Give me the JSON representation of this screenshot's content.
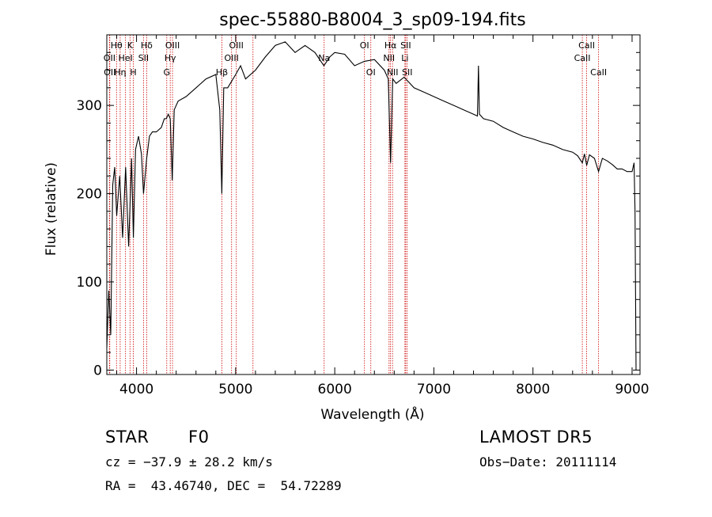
{
  "chart_data": {
    "type": "line",
    "title": "spec-55880-B8004_3_sp09-194.fits",
    "xlabel": "Wavelength (Å)",
    "ylabel": "Flux (relative)",
    "xlim": [
      3700,
      9080
    ],
    "ylim": [
      -5,
      380
    ],
    "xticks": [
      4000,
      5000,
      6000,
      7000,
      8000,
      9000
    ],
    "yticks": [
      0,
      100,
      200,
      300
    ],
    "line_color": "#000000",
    "marker_color": "#cc0000",
    "spectrum": {
      "name": "flux",
      "x": [
        3700,
        3720,
        3740,
        3760,
        3780,
        3800,
        3830,
        3860,
        3890,
        3920,
        3934,
        3950,
        3968,
        3990,
        4020,
        4050,
        4070,
        4102,
        4130,
        4160,
        4200,
        4250,
        4280,
        4300,
        4320,
        4340,
        4360,
        4380,
        4420,
        4500,
        4600,
        4700,
        4800,
        4840,
        4861,
        4880,
        4920,
        5000,
        5050,
        5100,
        5200,
        5300,
        5400,
        5500,
        5600,
        5700,
        5800,
        5890,
        5950,
        6000,
        6100,
        6200,
        6300,
        6400,
        6500,
        6540,
        6563,
        6585,
        6620,
        6700,
        6800,
        6900,
        7000,
        7100,
        7200,
        7300,
        7400,
        7440,
        7450,
        7460,
        7500,
        7600,
        7700,
        7800,
        7900,
        8000,
        8100,
        8200,
        8300,
        8400,
        8450,
        8498,
        8520,
        8542,
        8570,
        8620,
        8662,
        8700,
        8750,
        8800,
        8850,
        8900,
        8950,
        9000,
        9020,
        9030,
        9040
      ],
      "y": [
        25,
        90,
        40,
        210,
        230,
        175,
        220,
        150,
        230,
        140,
        185,
        240,
        150,
        250,
        265,
        245,
        200,
        240,
        265,
        270,
        270,
        275,
        285,
        285,
        290,
        285,
        215,
        295,
        305,
        310,
        320,
        330,
        335,
        295,
        200,
        320,
        320,
        335,
        345,
        330,
        340,
        355,
        368,
        372,
        360,
        368,
        360,
        345,
        355,
        360,
        358,
        345,
        350,
        352,
        340,
        330,
        235,
        330,
        325,
        332,
        320,
        315,
        310,
        305,
        300,
        295,
        290,
        288,
        345,
        290,
        285,
        282,
        275,
        270,
        265,
        262,
        258,
        255,
        250,
        247,
        243,
        235,
        245,
        232,
        244,
        240,
        225,
        240,
        237,
        233,
        228,
        228,
        225,
        225,
        235,
        180,
        0
      ]
    },
    "lines": [
      {
        "label": "Hθ",
        "x": 3798,
        "row": 1
      },
      {
        "label": "OII",
        "x": 3727,
        "row": 2
      },
      {
        "label": "OII",
        "x": 3730,
        "row": 3
      },
      {
        "label": "K",
        "x": 3934,
        "row": 1
      },
      {
        "label": "HeI",
        "x": 3889,
        "row": 2
      },
      {
        "label": "Hη",
        "x": 3835,
        "row": 3
      },
      {
        "label": "Hδ",
        "x": 4102,
        "row": 1
      },
      {
        "label": "SII",
        "x": 4070,
        "row": 2
      },
      {
        "label": "H",
        "x": 3968,
        "row": 3
      },
      {
        "label": "OIII",
        "x": 4363,
        "row": 1
      },
      {
        "label": "Hγ",
        "x": 4340,
        "row": 2
      },
      {
        "label": "G",
        "x": 4305,
        "row": 3
      },
      {
        "label": "OIII",
        "x": 5007,
        "row": 1
      },
      {
        "label": "OIII",
        "x": 4959,
        "row": 2
      },
      {
        "label": "Hβ",
        "x": 4861,
        "row": 3
      },
      {
        "label": "Na",
        "x": 5893,
        "row": 2
      },
      {
        "label": "OI",
        "x": 6300,
        "row": 1
      },
      {
        "label": "OI",
        "x": 6364,
        "row": 3
      },
      {
        "label": "Hα",
        "x": 6563,
        "row": 1
      },
      {
        "label": "NII",
        "x": 6548,
        "row": 2
      },
      {
        "label": "NII",
        "x": 6583,
        "row": 3
      },
      {
        "label": "SII",
        "x": 6716,
        "row": 1
      },
      {
        "label": "Li",
        "x": 6708,
        "row": 2
      },
      {
        "label": "SII",
        "x": 6731,
        "row": 3
      },
      {
        "label": "CaII",
        "x": 8542,
        "row": 1
      },
      {
        "label": "CaII",
        "x": 8498,
        "row": 2
      },
      {
        "label": "CaII",
        "x": 8662,
        "row": 3
      }
    ],
    "extra_markers": [
      5175
    ]
  },
  "info": {
    "class": "STAR",
    "subclass": "F0",
    "survey": "LAMOST DR5",
    "cz": "cz = −37.9 ± 28.2 km/s",
    "obs_date": "Obs−Date: 20111114",
    "coords": "RA =  43.46740, DEC =  54.72289"
  }
}
